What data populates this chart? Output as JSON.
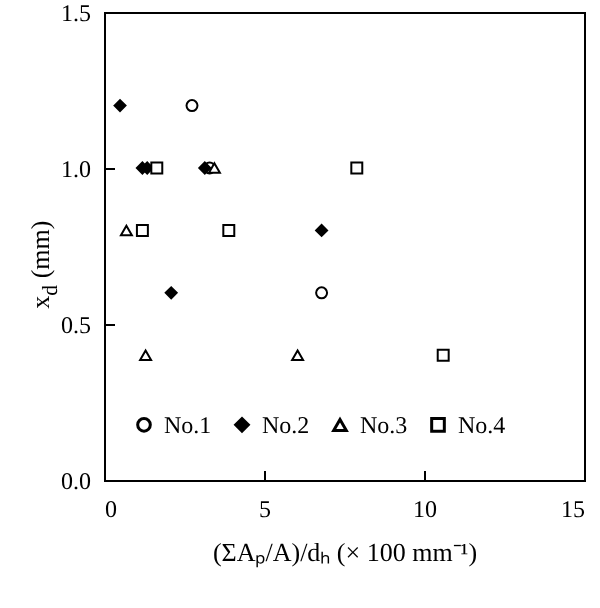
{
  "chart_data": {
    "type": "scatter",
    "xlabel": "(ΣAₚ/A)/dₕ (× 100 mm⁻¹)",
    "ylabel": "x$_{d}$ (mm)",
    "xlim": [
      0,
      15
    ],
    "xticks": [
      0,
      5,
      10,
      15
    ],
    "ylim": [
      0,
      1.5
    ],
    "yticks": [
      {
        "value": 0,
        "label": "0.0"
      },
      0.5,
      {
        "value": 1,
        "label": "1.0"
      },
      1.5
    ],
    "grid": false,
    "legend": "bottom",
    "series": [
      {
        "name": "No.1",
        "color": "#000000",
        "marker": "circle",
        "x": [
          2.75,
          3.3,
          6.8
        ],
        "values": [
          1.2,
          1.0,
          0.6
        ]
      },
      {
        "name": "No.2",
        "color": "#000000",
        "marker": "diamond",
        "x": [
          0.5,
          1.2,
          1.35,
          3.15,
          6.8,
          2.1
        ],
        "values": [
          1.2,
          1.0,
          1.0,
          1.0,
          0.8,
          0.6
        ]
      },
      {
        "name": "No.3",
        "color": "#000000",
        "marker": "triangle",
        "x": [
          0.7,
          1.3,
          6.05,
          3.45
        ],
        "values": [
          0.8,
          0.4,
          0.4,
          1.0
        ]
      },
      {
        "name": "No.4",
        "color": "#000000",
        "marker": "square",
        "x": [
          1.65,
          1.2,
          3.9,
          7.9,
          10.6
        ],
        "values": [
          1.0,
          0.8,
          0.8,
          1.0,
          0.4
        ]
      }
    ]
  }
}
